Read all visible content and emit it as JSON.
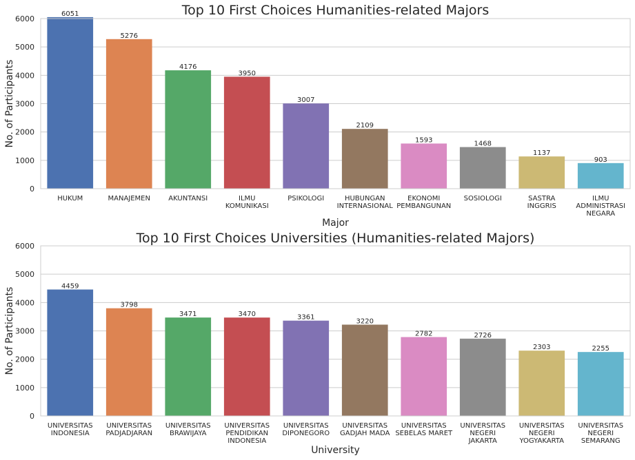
{
  "chart_data": [
    {
      "type": "bar",
      "title": "Top 10 First Choices Humanities-related Majors",
      "xlabel": "Major",
      "ylabel": "No. of Participants",
      "ylim": [
        0,
        6000
      ],
      "yticks": [
        0,
        1000,
        2000,
        3000,
        4000,
        5000,
        6000
      ],
      "grid": "y",
      "categories": [
        [
          "HUKUM"
        ],
        [
          "MANAJEMEN"
        ],
        [
          "AKUNTANSI"
        ],
        [
          "ILMU",
          "KOMUNIKASI"
        ],
        [
          "PSIKOLOGI"
        ],
        [
          "HUBUNGAN",
          "INTERNASIONAL"
        ],
        [
          "EKONOMI",
          "PEMBANGUNAN"
        ],
        [
          "SOSIOLOGI"
        ],
        [
          "SASTRA",
          "INGGRIS"
        ],
        [
          "ILMU",
          "ADMINISTRASI",
          "NEGARA"
        ]
      ],
      "values": [
        6051,
        5276,
        4176,
        3950,
        3007,
        2109,
        1593,
        1468,
        1137,
        903
      ]
    },
    {
      "type": "bar",
      "title": "Top 10 First Choices Universities (Humanities-related Majors)",
      "xlabel": "University",
      "ylabel": "No. of Participants",
      "ylim": [
        0,
        6000
      ],
      "yticks": [
        0,
        1000,
        2000,
        3000,
        4000,
        5000,
        6000
      ],
      "grid": "y",
      "categories": [
        [
          "UNIVERSITAS",
          "INDONESIA"
        ],
        [
          "UNIVERSITAS",
          "PADJADJARAN"
        ],
        [
          "UNIVERSITAS",
          "BRAWIJAYA"
        ],
        [
          "UNIVERSITAS",
          "PENDIDIKAN",
          "INDONESIA"
        ],
        [
          "UNIVERSITAS",
          "DIPONEGORO"
        ],
        [
          "UNIVERSITAS",
          "GADJAH MADA"
        ],
        [
          "UNIVERSITAS",
          "SEBELAS MARET"
        ],
        [
          "UNIVERSITAS",
          "NEGERI",
          "JAKARTA"
        ],
        [
          "UNIVERSITAS",
          "NEGERI",
          "YOGYAKARTA"
        ],
        [
          "UNIVERSITAS",
          "NEGERI",
          "SEMARANG"
        ]
      ],
      "values": [
        4459,
        3798,
        3471,
        3470,
        3361,
        3220,
        2782,
        2726,
        2303,
        2255
      ]
    }
  ],
  "colors": [
    "#4c72b0",
    "#dd8452",
    "#55a868",
    "#c44e52",
    "#8172b3",
    "#937860",
    "#da8bc3",
    "#8c8c8c",
    "#ccb974",
    "#64b5cd"
  ]
}
